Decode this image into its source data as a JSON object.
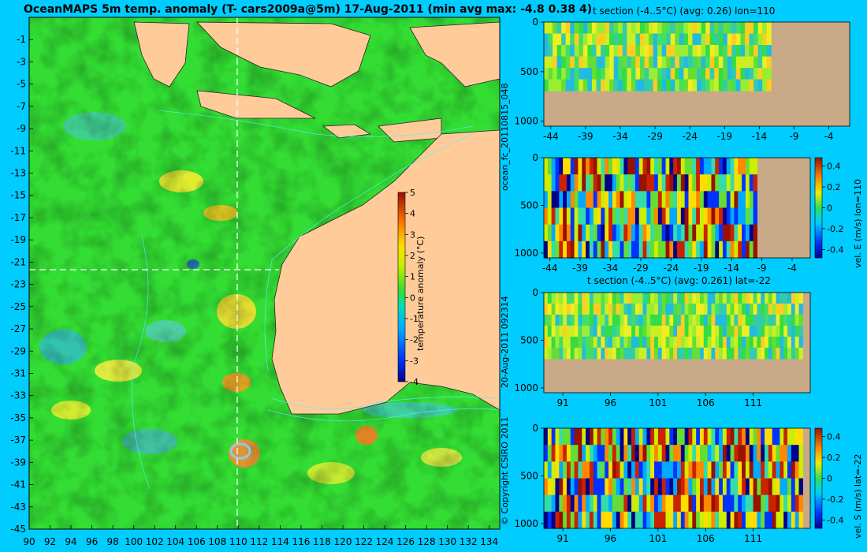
{
  "map": {
    "title": "OceanMAPS 5m temp. anomaly (T- cars2009a@5m) 17-Aug-2011 (min avg max: -4.8 0.38 4)",
    "lat_ticks": [
      "-1",
      "-3",
      "-5",
      "-7",
      "-9",
      "-11",
      "-13",
      "-15",
      "-17",
      "-19",
      "-21",
      "-23",
      "-25",
      "-27",
      "-29",
      "-31",
      "-33",
      "-35",
      "-37",
      "-39",
      "-41",
      "-43",
      "-45"
    ],
    "lon_ticks": [
      "90",
      "92",
      "94",
      "96",
      "98",
      "100",
      "102",
      "104",
      "106",
      "108",
      "110",
      "112",
      "114",
      "116",
      "118",
      "120",
      "122",
      "124",
      "126",
      "128",
      "130",
      "132",
      "134"
    ],
    "colorbar": {
      "label": "temperature anomaly (°C)",
      "ticks": [
        "5",
        "4",
        "3",
        "2",
        "1",
        "0",
        "-1",
        "-2",
        "-3",
        "-4"
      ]
    },
    "vertical_text": {
      "run": "ocean_fc_20110815_048",
      "date": "20-Aug-2011 092314",
      "copyright": "© Copyright CSIRO 2011"
    }
  },
  "panels": {
    "p1": {
      "title": "t section (-4..5°C) (avg: 0.26) lon=110",
      "xticks": [
        "-44",
        "-39",
        "-34",
        "-29",
        "-24",
        "-19",
        "-14",
        "-9",
        "-4"
      ],
      "yticks": [
        "0",
        "500",
        "1000"
      ]
    },
    "p2": {
      "xticks": [
        "-44",
        "-39",
        "-34",
        "-29",
        "-24",
        "-19",
        "-14",
        "-9",
        "-4"
      ],
      "yticks": [
        "0",
        "500",
        "1000"
      ],
      "cbar_label": "vel. E (m/s) lon=110",
      "cbar_ticks": [
        "0.4",
        "0.2",
        "0",
        "-0.2",
        "-0.4"
      ]
    },
    "p3": {
      "title": "t section (-4..5°C) (avg: 0.261) lat=-22",
      "xticks": [
        "91",
        "96",
        "101",
        "106",
        "111"
      ],
      "yticks": [
        "0",
        "500",
        "1000"
      ]
    },
    "p4": {
      "xticks": [
        "91",
        "96",
        "101",
        "106",
        "111"
      ],
      "yticks": [
        "0",
        "500",
        "1000"
      ],
      "cbar_label": "vel. S (m/s) lat=-22",
      "cbar_ticks": [
        "0.4",
        "0.2",
        "0",
        "-0.2",
        "-0.4"
      ]
    }
  },
  "chart_data": [
    {
      "type": "heatmap",
      "title": "OceanMAPS 5m temp. anomaly (T- cars2009a@5m) 17-Aug-2011 (min avg max: -4.8 0.38 4)",
      "x_ticks": [
        90,
        92,
        94,
        96,
        98,
        100,
        102,
        104,
        106,
        108,
        110,
        112,
        114,
        116,
        118,
        120,
        122,
        124,
        126,
        128,
        130,
        132,
        134
      ],
      "y_ticks": [
        -1,
        -3,
        -5,
        -7,
        -9,
        -11,
        -13,
        -15,
        -17,
        -19,
        -21,
        -23,
        -25,
        -27,
        -29,
        -31,
        -33,
        -35,
        -37,
        -39,
        -41,
        -43,
        -45
      ],
      "xlim": [
        90,
        135
      ],
      "ylim": [
        -45,
        1
      ],
      "colorbar_range": [
        -4,
        5
      ],
      "colorbar_label": "temperature anomaly (°C)",
      "stats": {
        "min": -4.8,
        "avg": 0.38,
        "max": 4
      }
    },
    {
      "type": "heatmap",
      "title": "t section (-4..5°C) (avg: 0.26) lon=110",
      "xlim": [
        -45,
        -1
      ],
      "ylim": [
        1050,
        0
      ],
      "avg": 0.26
    },
    {
      "type": "heatmap",
      "xlim": [
        -45,
        -1
      ],
      "ylim": [
        1050,
        0
      ],
      "colorbar_label": "vel. E (m/s) lon=110",
      "colorbar_range": [
        -0.4,
        0.4
      ]
    },
    {
      "type": "heatmap",
      "title": "t section (-4..5°C) (avg: 0.261) lat=-22",
      "xlim": [
        89,
        117
      ],
      "ylim": [
        1050,
        0
      ],
      "avg": 0.261
    },
    {
      "type": "heatmap",
      "xlim": [
        89,
        117
      ],
      "ylim": [
        1050,
        0
      ],
      "colorbar_label": "vel. S (m/s) lat=-22",
      "colorbar_range": [
        -0.4,
        0.4
      ]
    }
  ],
  "colors": {
    "background": "#00ccff",
    "ocean": "#33dd33",
    "land": "#ffcc99",
    "section_land": "#c8aa88"
  }
}
